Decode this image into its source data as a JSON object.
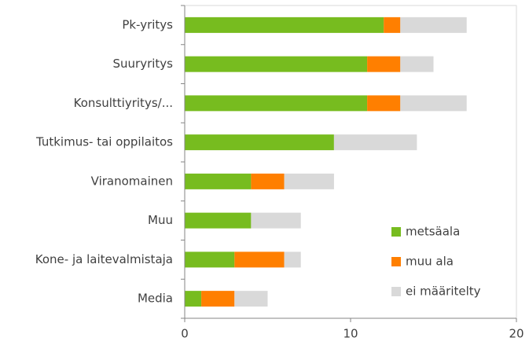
{
  "chart_data": {
    "type": "stacked-bar-horizontal",
    "categories": [
      "Pk-yritys",
      "Suuryritys",
      "Konsulttiyritys/...",
      "Tutkimus- tai oppilaitos",
      "Viranomainen",
      "Muu",
      "Kone- ja laitevalmistaja",
      "Media"
    ],
    "series": [
      {
        "name": "metsäala",
        "color": "#77bc1f",
        "values": [
          12,
          11,
          11,
          9,
          4,
          4,
          3,
          1
        ]
      },
      {
        "name": "muu ala",
        "color": "#ff7f00",
        "values": [
          1,
          2,
          2,
          0,
          2,
          0,
          3,
          2
        ]
      },
      {
        "name": "ei määritelty",
        "color": "#d9d9d9",
        "values": [
          4,
          2,
          4,
          5,
          3,
          3,
          1,
          2
        ]
      }
    ],
    "xlim": [
      0,
      20
    ],
    "xticks": [
      0,
      10,
      20
    ],
    "legend": "lower right",
    "grid": false
  }
}
